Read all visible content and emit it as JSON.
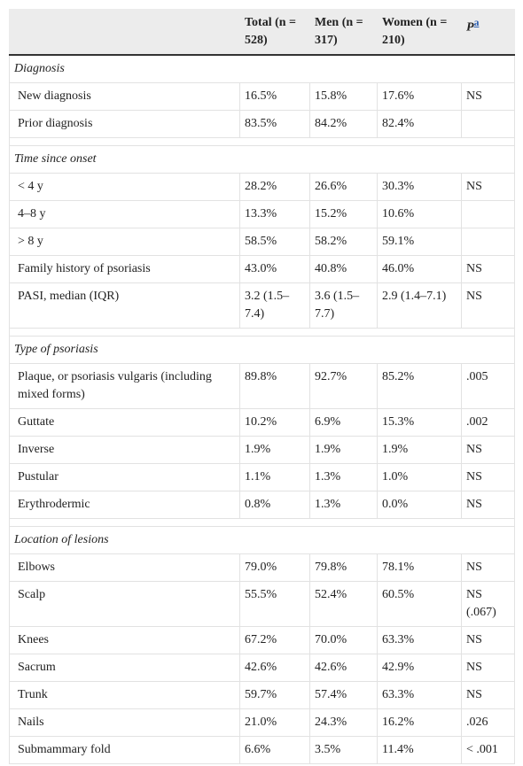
{
  "table": {
    "header": [
      "",
      "Total (n = 528)",
      "Men (n = 317)",
      "Women (n = 210)",
      {
        "text": "P",
        "note": "a"
      }
    ],
    "sections": [
      {
        "title": "Diagnosis",
        "rows": [
          [
            "New diagnosis",
            "16.5%",
            "15.8%",
            "17.6%",
            "NS"
          ],
          [
            "Prior diagnosis",
            "83.5%",
            "84.2%",
            "82.4%"
          ]
        ]
      },
      {
        "title": "Time since onset",
        "rows": [
          [
            "< 4 y",
            "28.2%",
            "26.6%",
            "30.3%",
            "NS"
          ],
          [
            "4–8 y",
            "13.3%",
            "15.2%",
            "10.6%"
          ],
          [
            "> 8 y",
            "58.5%",
            "58.2%",
            "59.1%"
          ],
          [
            "Family history of psoriasis",
            "43.0%",
            "40.8%",
            "46.0%",
            "NS"
          ],
          [
            "PASI, median (IQR)",
            "3.2 (1.5–7.4)",
            "3.6 (1.5–7.7)",
            "2.9 (1.4–7.1)",
            "NS"
          ]
        ]
      },
      {
        "title": "Type of psoriasis",
        "rows": [
          [
            "Plaque, or psoriasis vulgaris (including mixed forms)",
            "89.8%",
            "92.7%",
            "85.2%",
            ".005"
          ],
          [
            "Guttate",
            "10.2%",
            "6.9%",
            "15.3%",
            ".002"
          ],
          [
            "Inverse",
            "1.9%",
            "1.9%",
            "1.9%",
            "NS"
          ],
          [
            "Pustular",
            "1.1%",
            "1.3%",
            "1.0%",
            "NS"
          ],
          [
            "Erythrodermic",
            "0.8%",
            "1.3%",
            "0.0%",
            "NS"
          ]
        ]
      },
      {
        "title": "Location of lesions",
        "rows": [
          [
            "Elbows",
            "79.0%",
            "79.8%",
            "78.1%",
            "NS"
          ],
          [
            "Scalp",
            "55.5%",
            "52.4%",
            "60.5%",
            "NS (.067)"
          ],
          [
            "Knees",
            "67.2%",
            "70.0%",
            "63.3%",
            "NS"
          ],
          [
            "Sacrum",
            "42.6%",
            "42.6%",
            "42.9%",
            "NS"
          ],
          [
            "Trunk",
            "59.7%",
            "57.4%",
            "63.3%",
            "NS"
          ],
          [
            "Nails",
            "21.0%",
            "24.3%",
            "16.2%",
            ".026"
          ],
          [
            "Submammary fold",
            "6.6%",
            "3.5%",
            "11.4%",
            "< .001"
          ]
        ]
      }
    ]
  }
}
